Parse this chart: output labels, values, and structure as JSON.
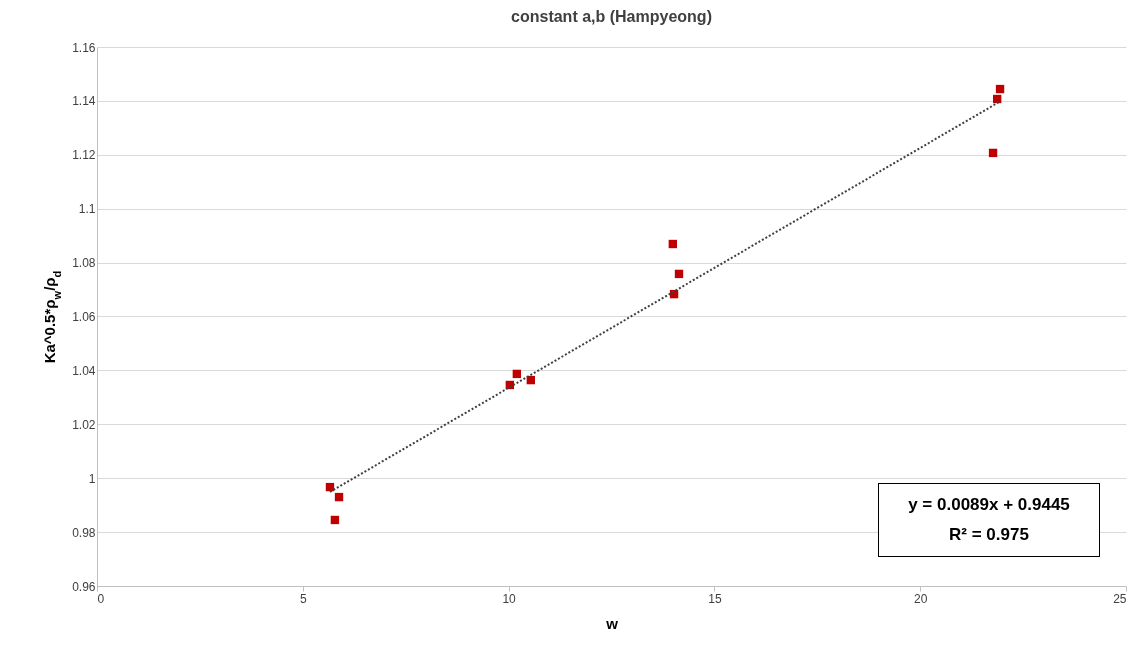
{
  "chart_data": {
    "type": "scatter",
    "title": "constant a,b (Hampyeong)",
    "xlabel": "w",
    "ylabel": "Ka^0.5*ρ$_{w}$/ρ$_{d}$",
    "xlim": [
      0,
      25
    ],
    "xticks": [
      0,
      5,
      10,
      15,
      20,
      25
    ],
    "ylim": [
      0.96,
      1.16
    ],
    "yticks": [
      0.96,
      0.98,
      1,
      1.02,
      1.04,
      1.06,
      1.08,
      1.1,
      1.12,
      1.14,
      1.16
    ],
    "grid": "y",
    "marker": "square",
    "series": [
      {
        "color": "#c00000",
        "x": [
          5.66,
          5.88,
          5.78,
          10.03,
          10.2,
          10.54,
          13.99,
          14.14,
          14.02,
          21.77,
          21.87,
          21.94
        ],
        "values": [
          0.9967,
          0.993,
          0.9845,
          1.0346,
          1.0387,
          1.0364,
          1.0869,
          1.0758,
          1.0683,
          1.1207,
          1.1407,
          1.1444
        ]
      },
      {
        "type": "line",
        "color": "#404040",
        "line_style": "dotted",
        "marker": "none",
        "x": [
          5.66,
          21.94
        ],
        "values": [
          0.9949,
          1.1398
        ]
      }
    ],
    "annotations": [
      "y = 0.0089x + 0.9445",
      "R² = 0.975"
    ]
  }
}
